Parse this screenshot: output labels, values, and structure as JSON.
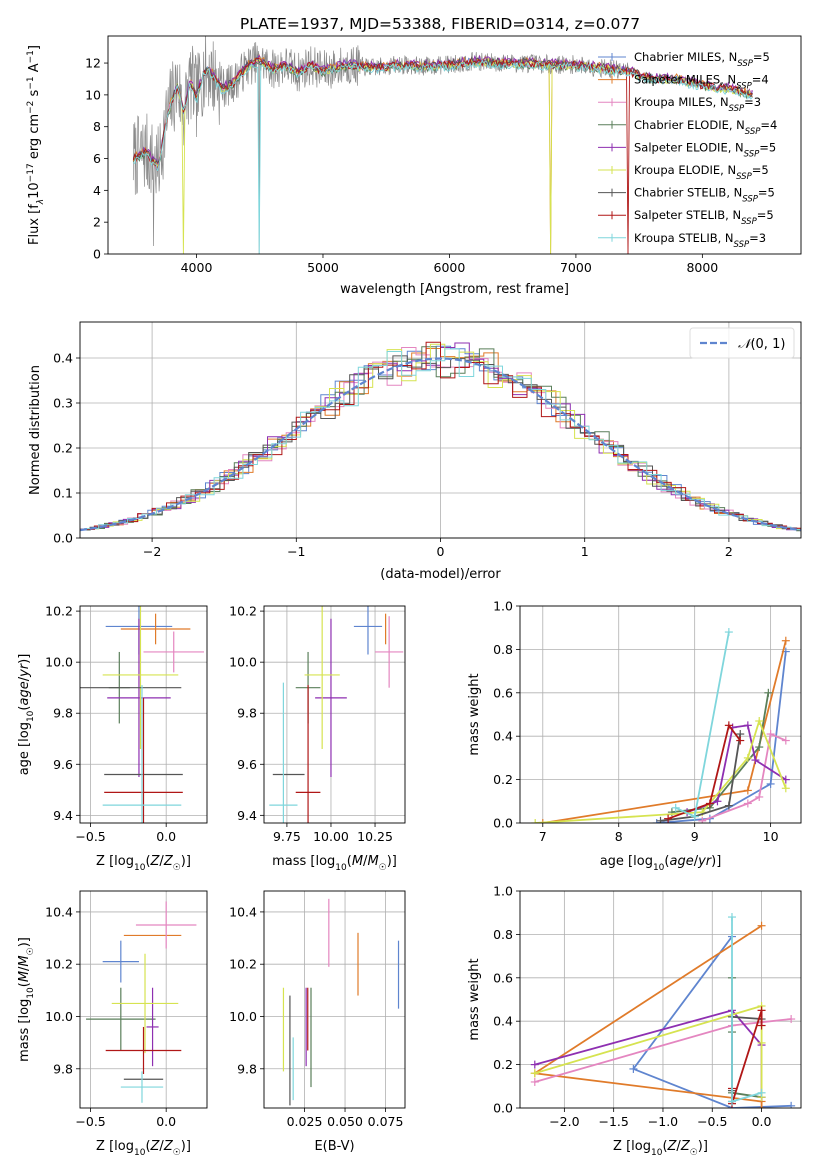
{
  "figure": {
    "title": "PLATE=1937, MJD=53388, FIBERID=0314, z=0.077"
  },
  "series_styles": [
    {
      "name": "Chabrier MILES, N_SSP=5",
      "label_main": "Chabrier MILES, N",
      "label_sub": "SSP",
      "label_tail": "=5",
      "color": "#5f85cf"
    },
    {
      "name": "Salpeter MILES, N_SSP=4",
      "label_main": "Salpeter MILES, N",
      "label_sub": "SSP",
      "label_tail": "=4",
      "color": "#e07b2a"
    },
    {
      "name": "Kroupa MILES, N_SSP=3",
      "label_main": "Kroupa MILES, N",
      "label_sub": "SSP",
      "label_tail": "=3",
      "color": "#e486c0"
    },
    {
      "name": "Chabrier ELODIE, N_SSP=4",
      "label_main": "Chabrier ELODIE, N",
      "label_sub": "SSP",
      "label_tail": "=4",
      "color": "#5a7f5a"
    },
    {
      "name": "Salpeter ELODIE, N_SSP=5",
      "label_main": "Salpeter ELODIE, N",
      "label_sub": "SSP",
      "label_tail": "=5",
      "color": "#8e2fb1"
    },
    {
      "name": "Kroupa ELODIE, N_SSP=5",
      "label_main": "Kroupa ELODIE, N",
      "label_sub": "SSP",
      "label_tail": "=5",
      "color": "#d6e350"
    },
    {
      "name": "Chabrier STELIB, N_SSP=5",
      "label_main": "Chabrier STELIB, N",
      "label_sub": "SSP",
      "label_tail": "=5",
      "color": "#555555"
    },
    {
      "name": "Salpeter STELIB, N_SSP=5",
      "label_main": "Salpeter STELIB, N",
      "label_sub": "SSP",
      "label_tail": "=5",
      "color": "#b01717"
    },
    {
      "name": "Kroupa STELIB, N_SSP=3",
      "label_main": "Kroupa STELIB, N",
      "label_sub": "SSP",
      "label_tail": "=3",
      "color": "#7fd6dc"
    }
  ],
  "chart_data": [
    {
      "id": "spectrum",
      "type": "line",
      "title": "PLATE=1937, MJD=53388, FIBERID=0314, z=0.077",
      "xlabel": "wavelength [Angstrom, rest frame]",
      "ylabel_main": "Flux [f",
      "ylabel_rest": "10",
      "ylabel_exp": "−17",
      "ylabel_units": " erg cm",
      "xlim": [
        3300,
        8780
      ],
      "ylim": [
        0,
        13.7
      ],
      "xticks": [
        4000,
        5000,
        6000,
        7000,
        8000
      ],
      "yticks": [
        0,
        2,
        4,
        6,
        8,
        10,
        12
      ],
      "grid": false,
      "legend": "top-right",
      "data_series_name": "observed spectrum (grey)",
      "data_x_range": [
        3500,
        7420
      ],
      "model_knots_x": [
        3500,
        3600,
        3700,
        3750,
        3800,
        3850,
        3900,
        3950,
        4000,
        4050,
        4100,
        4200,
        4300,
        4400,
        4500,
        4600,
        4700,
        4800,
        4900,
        5000,
        5200,
        5400,
        5600,
        5800,
        6000,
        6200,
        6400,
        6600,
        6800,
        7000,
        7200,
        7400,
        7600,
        7800,
        8000,
        8200,
        8400
      ],
      "model_knots_y": [
        6.0,
        6.4,
        5.4,
        8.0,
        9.5,
        10.6,
        8.9,
        10.9,
        9.8,
        11.3,
        11.6,
        10.4,
        10.8,
        11.8,
        12.2,
        11.6,
        11.9,
        11.4,
        11.9,
        11.5,
        11.9,
        11.7,
        11.9,
        11.8,
        11.9,
        12.1,
        12.0,
        12.0,
        11.9,
        11.9,
        11.7,
        11.5,
        11.0,
        11.0,
        10.6,
        10.4,
        10.0
      ],
      "model_offsets": [
        0.0,
        0.08,
        0.02,
        -0.1,
        0.12,
        -0.05,
        0.05,
        -0.02,
        -0.15
      ]
    },
    {
      "id": "residual_distribution",
      "type": "histogram",
      "xlabel": "(data-model)/error",
      "ylabel": "Normed distribution",
      "xlim": [
        -2.5,
        2.5
      ],
      "ylim": [
        0,
        0.48
      ],
      "xticks": [
        -2,
        -1,
        0,
        1,
        2
      ],
      "yticks": [
        0.0,
        0.1,
        0.2,
        0.3,
        0.4
      ],
      "grid": true,
      "legend": "top-right",
      "reference_curve": "N(0,1)",
      "bin_width": 0.1,
      "bin_range": [
        -2.5,
        2.5
      ]
    },
    {
      "id": "age_vs_Z",
      "type": "errorbar",
      "xlabel": "Z [log10(Z/Zsun)]",
      "ylabel": "age [log10(age/yr)]",
      "xlim": [
        -0.57,
        0.27
      ],
      "ylim": [
        9.37,
        10.22
      ],
      "xticks": [
        -0.5,
        0.0
      ],
      "yticks": [
        9.4,
        9.6,
        9.8,
        10.0,
        10.2
      ],
      "grid": true,
      "points": [
        {
          "series": 0,
          "x": -0.18,
          "xerr": 0.22,
          "y": 10.14,
          "yerr": 0.11
        },
        {
          "series": 1,
          "x": -0.07,
          "xerr": 0.23,
          "y": 10.13,
          "yerr": 0.06
        },
        {
          "series": 2,
          "x": 0.05,
          "xerr": 0.2,
          "y": 10.04,
          "yerr": 0.08
        },
        {
          "series": 3,
          "x": -0.31,
          "xerr": 0.07,
          "y": 9.9,
          "yerr": 0.14
        },
        {
          "series": 4,
          "x": -0.18,
          "xerr": 0.21,
          "y": 9.86,
          "yerr": 0.31
        },
        {
          "series": 5,
          "x": -0.17,
          "xerr": 0.25,
          "y": 9.95,
          "yerr": 0.29
        },
        {
          "series": 6,
          "x": -0.28,
          "xerr": 0.38,
          "y": 9.9,
          "yerr": 0.0
        },
        {
          "series": 6,
          "x": -0.15,
          "xerr": 0.26,
          "y": 9.56,
          "yerr": 0.0
        },
        {
          "series": 7,
          "x": -0.15,
          "xerr": 0.26,
          "y": 9.49,
          "yerr": 0.37
        },
        {
          "series": 8,
          "x": -0.16,
          "xerr": 0.26,
          "y": 9.44,
          "yerr": 0.47
        }
      ]
    },
    {
      "id": "age_vs_mass",
      "type": "errorbar",
      "xlabel": "mass [log10(M/Msun)]",
      "ylabel": "",
      "xlim": [
        9.62,
        10.42
      ],
      "ylim": [
        9.37,
        10.22
      ],
      "xticks": [
        9.75,
        10.0,
        10.25
      ],
      "yticks": [
        9.4,
        9.6,
        9.8,
        10.0,
        10.2
      ],
      "grid": true,
      "points": [
        {
          "series": 0,
          "x": 10.21,
          "xerr": 0.08,
          "y": 10.14,
          "yerr": 0.11
        },
        {
          "series": 1,
          "x": 10.31,
          "xerr": 0.0,
          "y": 10.13,
          "yerr": 0.06
        },
        {
          "series": 2,
          "x": 10.33,
          "xerr": 0.08,
          "y": 10.04,
          "yerr": 0.14
        },
        {
          "series": 3,
          "x": 9.87,
          "xerr": 0.07,
          "y": 9.9,
          "yerr": 0.14
        },
        {
          "series": 4,
          "x": 10.0,
          "xerr": 0.09,
          "y": 9.86,
          "yerr": 0.31
        },
        {
          "series": 5,
          "x": 9.95,
          "xerr": 0.1,
          "y": 9.95,
          "yerr": 0.29
        },
        {
          "series": 6,
          "x": 9.76,
          "xerr": 0.09,
          "y": 9.56,
          "yerr": 0.0
        },
        {
          "series": 7,
          "x": 9.87,
          "xerr": 0.07,
          "y": 9.49,
          "yerr": 0.42
        },
        {
          "series": 8,
          "x": 9.73,
          "xerr": 0.08,
          "y": 9.44,
          "yerr": 0.48
        }
      ]
    },
    {
      "id": "mass_weight_vs_age",
      "type": "line",
      "xlabel": "age [log10(age/yr)]",
      "ylabel": "mass weight",
      "xlim": [
        6.7,
        10.4
      ],
      "ylim": [
        0,
        1
      ],
      "xticks": [
        7,
        8,
        9,
        10
      ],
      "yticks": [
        0.0,
        0.2,
        0.4,
        0.6,
        0.8,
        1.0
      ],
      "grid": true,
      "series": [
        {
          "style": 0,
          "x": [
            8.5,
            9.2,
            10.0,
            10.2
          ],
          "y": [
            0.0,
            0.02,
            0.18,
            0.79
          ]
        },
        {
          "style": 1,
          "x": [
            7.0,
            9.7,
            10.2
          ],
          "y": [
            0.0,
            0.15,
            0.84
          ]
        },
        {
          "style": 2,
          "x": [
            9.1,
            9.7,
            9.85,
            10.0,
            10.2
          ],
          "y": [
            0.01,
            0.09,
            0.12,
            0.41,
            0.38
          ]
        },
        {
          "style": 3,
          "x": [
            8.7,
            9.2,
            9.85,
            9.97
          ],
          "y": [
            0.05,
            0.07,
            0.35,
            0.6
          ]
        },
        {
          "style": 4,
          "x": [
            8.9,
            9.3,
            9.5,
            9.7,
            9.8,
            10.2
          ],
          "y": [
            0.05,
            0.1,
            0.44,
            0.45,
            0.29,
            0.2
          ]
        },
        {
          "style": 5,
          "x": [
            6.9,
            9.1,
            9.7,
            9.85,
            10.2
          ],
          "y": [
            0.0,
            0.05,
            0.3,
            0.47,
            0.16
          ]
        },
        {
          "style": 6,
          "x": [
            8.55,
            9.0,
            9.45,
            9.6
          ],
          "y": [
            0.01,
            0.03,
            0.08,
            0.41
          ]
        },
        {
          "style": 7,
          "x": [
            8.65,
            9.2,
            9.45,
            9.6
          ],
          "y": [
            0.02,
            0.09,
            0.45,
            0.38
          ]
        },
        {
          "style": 8,
          "x": [
            8.75,
            9.0,
            9.45
          ],
          "y": [
            0.07,
            0.03,
            0.88
          ]
        }
      ]
    },
    {
      "id": "mass_vs_Z",
      "type": "errorbar",
      "xlabel": "Z [log10(Z/Zsun)]",
      "ylabel": "mass [log10(M/Msun)]",
      "xlim": [
        -0.57,
        0.27
      ],
      "ylim": [
        9.65,
        10.48
      ],
      "xticks": [
        -0.5,
        0.0
      ],
      "yticks": [
        9.8,
        10.0,
        10.2,
        10.4
      ],
      "grid": true,
      "points": [
        {
          "series": 0,
          "x": -0.3,
          "xerr": 0.12,
          "y": 10.21,
          "yerr": 0.08
        },
        {
          "series": 1,
          "x": -0.09,
          "xerr": 0.19,
          "y": 10.31,
          "yerr": 0.0
        },
        {
          "series": 2,
          "x": 0.0,
          "xerr": 0.2,
          "y": 10.35,
          "yerr": 0.09
        },
        {
          "series": 3,
          "x": -0.3,
          "xerr": 0.23,
          "y": 9.99,
          "yerr": 0.12
        },
        {
          "series": 4,
          "x": -0.09,
          "xerr": 0.04,
          "y": 9.96,
          "yerr": 0.15
        },
        {
          "series": 5,
          "x": -0.14,
          "xerr": 0.22,
          "y": 10.05,
          "yerr": 0.19
        },
        {
          "series": 6,
          "x": -0.15,
          "xerr": 0.13,
          "y": 9.76,
          "yerr": 0.0
        },
        {
          "series": 7,
          "x": -0.15,
          "xerr": 0.25,
          "y": 9.87,
          "yerr": 0.09
        },
        {
          "series": 8,
          "x": -0.16,
          "xerr": 0.14,
          "y": 9.73,
          "yerr": 0.06
        }
      ]
    },
    {
      "id": "mass_vs_ebv",
      "type": "errorbar",
      "xlabel": "E(B-V)",
      "ylabel": "",
      "xlim": [
        0.0,
        0.087
      ],
      "ylim": [
        9.65,
        10.48
      ],
      "xticks": [
        0.025,
        0.05,
        0.075
      ],
      "xtick_labels": [
        "0.025",
        "0.050",
        "0.075"
      ],
      "yticks": [
        9.8,
        10.0,
        10.2,
        10.4
      ],
      "grid": true,
      "points": [
        {
          "series": 0,
          "x": 0.083,
          "xerr": 0.0,
          "y": 10.16,
          "yerr": 0.13
        },
        {
          "series": 1,
          "x": 0.058,
          "xerr": 0.0,
          "y": 10.2,
          "yerr": 0.12
        },
        {
          "series": 2,
          "x": 0.04,
          "xerr": 0.0,
          "y": 10.32,
          "yerr": 0.13
        },
        {
          "series": 3,
          "x": 0.029,
          "xerr": 0.0,
          "y": 9.92,
          "yerr": 0.19
        },
        {
          "series": 4,
          "x": 0.026,
          "xerr": 0.0,
          "y": 9.96,
          "yerr": 0.15
        },
        {
          "series": 5,
          "x": 0.012,
          "xerr": 0.0,
          "y": 9.95,
          "yerr": 0.16
        },
        {
          "series": 6,
          "x": 0.016,
          "xerr": 0.0,
          "y": 9.87,
          "yerr": 0.21
        },
        {
          "series": 7,
          "x": 0.027,
          "xerr": 0.0,
          "y": 9.99,
          "yerr": 0.12
        },
        {
          "series": 8,
          "x": 0.018,
          "xerr": 0.0,
          "y": 9.8,
          "yerr": 0.12
        }
      ]
    },
    {
      "id": "mass_weight_vs_Z",
      "type": "line",
      "xlabel": "Z [log10(Z/Zsun)]",
      "ylabel": "mass weight",
      "xlim": [
        -2.45,
        0.4
      ],
      "ylim": [
        0,
        1
      ],
      "xticks": [
        -2.0,
        -1.5,
        -1.0,
        -0.5,
        0.0
      ],
      "yticks": [
        0.0,
        0.2,
        0.4,
        0.6,
        0.8,
        1.0
      ],
      "grid": true,
      "series": [
        {
          "style": 0,
          "x": [
            0.3,
            -0.3,
            -1.3,
            -0.3
          ],
          "y": [
            0.01,
            0.0,
            0.18,
            0.79
          ]
        },
        {
          "style": 1,
          "x": [
            0.0,
            -2.3,
            0.0,
            0.0
          ],
          "y": [
            0.84,
            0.16,
            0.03,
            0.0
          ]
        },
        {
          "style": 2,
          "x": [
            -2.3,
            -0.3,
            0.3
          ],
          "y": [
            0.12,
            0.38,
            0.41
          ]
        },
        {
          "style": 3,
          "x": [
            -0.3,
            -0.3,
            -0.3,
            0.0
          ],
          "y": [
            0.6,
            0.35,
            0.07,
            0.05
          ]
        },
        {
          "style": 4,
          "x": [
            -2.3,
            -0.3,
            0.0,
            0.0
          ],
          "y": [
            0.2,
            0.45,
            0.29,
            0.05
          ]
        },
        {
          "style": 5,
          "x": [
            -2.3,
            0.0,
            0.0,
            0.0
          ],
          "y": [
            0.16,
            0.47,
            0.3,
            0.05
          ]
        },
        {
          "style": 6,
          "x": [
            0.0,
            -0.3,
            -0.3,
            -0.3
          ],
          "y": [
            0.41,
            0.42,
            0.08,
            0.03
          ]
        },
        {
          "style": 7,
          "x": [
            -0.3,
            -0.3,
            0.0,
            0.0
          ],
          "y": [
            0.09,
            0.02,
            0.45,
            0.38
          ]
        },
        {
          "style": 8,
          "x": [
            -0.3,
            -0.3,
            0.0
          ],
          "y": [
            0.88,
            0.03,
            0.07
          ]
        }
      ]
    }
  ]
}
